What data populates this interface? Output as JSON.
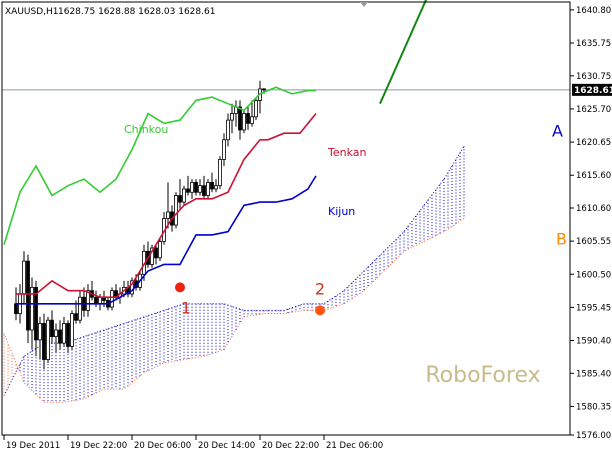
{
  "header": {
    "symbol": "XAUUSD,H1",
    "ohlc": "1628.75 1628.88 1628.03 1628.61"
  },
  "colors": {
    "chinkou": "#33cc33",
    "tenkan": "#cc1133",
    "kijun": "#0000cc",
    "cloud_a": "#0000cc",
    "cloud_b": "#ff6633",
    "forecast": "#118811",
    "last_price_line": "#8899aa",
    "watermark": "#c8bc8a"
  },
  "chart_data": {
    "type": "line",
    "ylim": [
      1576.0,
      1642.0
    ],
    "y_ticks": [
      "1640.80",
      "1635.75",
      "1630.75",
      "1625.70",
      "1620.65",
      "1615.60",
      "1610.60",
      "1605.55",
      "1600.50",
      "1595.45",
      "1590.40",
      "1585.40",
      "1580.35",
      "1576.00"
    ],
    "y_tick_values": [
      1640.8,
      1635.75,
      1630.75,
      1625.7,
      1620.65,
      1615.6,
      1610.6,
      1605.55,
      1600.5,
      1595.45,
      1590.4,
      1585.4,
      1580.35,
      1576.0
    ],
    "x_ticks": [
      "19 Dec 2011",
      "19 Dec 22:00",
      "20 Dec 06:00",
      "20 Dec 14:00",
      "20 Dec 22:00",
      "21 Dec 06:00"
    ],
    "x_tick_index": [
      0,
      16,
      32,
      48,
      64,
      80
    ],
    "last_price": 1628.61,
    "last_price_label": "1628.61",
    "candles": [
      [
        1596.0,
        1598.5,
        1593.5,
        1594.5
      ],
      [
        1594.5,
        1599.0,
        1593.0,
        1597.5
      ],
      [
        1597.5,
        1604.0,
        1596.0,
        1602.5
      ],
      [
        1602.5,
        1603.5,
        1590.0,
        1592.0
      ],
      [
        1592.0,
        1600.0,
        1589.0,
        1598.5
      ],
      [
        1598.5,
        1599.5,
        1588.0,
        1590.5
      ],
      [
        1590.5,
        1594.0,
        1587.5,
        1593.0
      ],
      [
        1593.0,
        1594.5,
        1586.0,
        1587.5
      ],
      [
        1587.5,
        1594.0,
        1587.0,
        1593.5
      ],
      [
        1593.5,
        1595.0,
        1590.0,
        1591.0
      ],
      [
        1591.0,
        1593.0,
        1588.5,
        1592.0
      ],
      [
        1592.0,
        1593.5,
        1589.0,
        1590.0
      ],
      [
        1590.0,
        1594.0,
        1589.5,
        1593.0
      ],
      [
        1593.0,
        1593.5,
        1588.5,
        1589.5
      ],
      [
        1589.5,
        1595.0,
        1589.0,
        1594.5
      ],
      [
        1594.5,
        1596.5,
        1593.0,
        1593.5
      ],
      [
        1593.5,
        1598.0,
        1593.0,
        1597.0
      ],
      [
        1597.0,
        1598.5,
        1594.0,
        1595.0
      ],
      [
        1595.0,
        1599.0,
        1594.0,
        1598.0
      ],
      [
        1598.0,
        1599.5,
        1596.5,
        1597.0
      ],
      [
        1597.0,
        1598.0,
        1595.5,
        1596.0
      ],
      [
        1596.0,
        1597.5,
        1595.0,
        1597.0
      ],
      [
        1597.0,
        1598.0,
        1595.5,
        1596.5
      ],
      [
        1596.5,
        1597.0,
        1595.0,
        1595.5
      ],
      [
        1595.5,
        1598.5,
        1595.0,
        1598.0
      ],
      [
        1598.0,
        1599.0,
        1596.5,
        1597.0
      ],
      [
        1597.0,
        1598.5,
        1596.0,
        1597.5
      ],
      [
        1597.5,
        1599.5,
        1597.0,
        1598.5
      ],
      [
        1598.5,
        1599.5,
        1597.0,
        1597.5
      ],
      [
        1597.5,
        1600.0,
        1597.0,
        1599.5
      ],
      [
        1599.5,
        1600.5,
        1598.0,
        1598.5
      ],
      [
        1598.5,
        1601.0,
        1598.0,
        1600.5
      ],
      [
        1600.5,
        1605.0,
        1599.5,
        1604.0
      ],
      [
        1604.0,
        1605.5,
        1601.5,
        1602.0
      ],
      [
        1602.0,
        1605.0,
        1601.5,
        1604.5
      ],
      [
        1604.5,
        1605.0,
        1602.0,
        1603.0
      ],
      [
        1603.0,
        1606.0,
        1602.5,
        1605.5
      ],
      [
        1605.5,
        1610.0,
        1605.0,
        1609.0
      ],
      [
        1609.0,
        1614.5,
        1607.5,
        1610.0
      ],
      [
        1610.0,
        1611.0,
        1607.0,
        1608.0
      ],
      [
        1608.0,
        1613.0,
        1607.5,
        1612.5
      ],
      [
        1612.5,
        1615.0,
        1610.5,
        1611.5
      ],
      [
        1611.5,
        1614.0,
        1611.0,
        1613.5
      ],
      [
        1613.5,
        1615.5,
        1612.5,
        1613.0
      ],
      [
        1613.0,
        1615.0,
        1612.0,
        1614.5
      ],
      [
        1614.5,
        1615.0,
        1612.5,
        1613.0
      ],
      [
        1613.0,
        1615.0,
        1612.5,
        1614.0
      ],
      [
        1614.0,
        1615.5,
        1612.0,
        1612.5
      ],
      [
        1612.5,
        1615.0,
        1612.0,
        1614.5
      ],
      [
        1614.5,
        1616.0,
        1613.0,
        1613.5
      ],
      [
        1613.5,
        1615.0,
        1613.0,
        1614.0
      ],
      [
        1614.0,
        1618.5,
        1613.5,
        1618.0
      ],
      [
        1618.0,
        1622.0,
        1617.0,
        1621.0
      ],
      [
        1621.0,
        1625.0,
        1620.0,
        1624.0
      ],
      [
        1624.0,
        1626.5,
        1622.0,
        1625.0
      ],
      [
        1625.0,
        1627.0,
        1623.0,
        1626.0
      ],
      [
        1626.0,
        1627.0,
        1621.0,
        1622.5
      ],
      [
        1622.5,
        1625.5,
        1622.0,
        1625.0
      ],
      [
        1625.0,
        1626.0,
        1622.5,
        1623.5
      ],
      [
        1623.5,
        1627.0,
        1623.0,
        1624.5
      ],
      [
        1624.5,
        1627.5,
        1624.0,
        1627.0
      ],
      [
        1627.0,
        1630.0,
        1625.0,
        1628.75
      ],
      [
        1628.75,
        1628.88,
        1628.03,
        1628.61
      ]
    ],
    "candle_x0": 3,
    "series": [
      {
        "name": "Tenkan",
        "color": "#cc1133",
        "x": [
          3,
          8,
          12,
          16,
          20,
          24,
          28,
          32,
          36,
          39,
          42,
          45,
          48,
          52,
          56,
          60,
          64,
          66,
          70,
          74,
          78
        ],
        "values": [
          1597.5,
          1597.5,
          1599.5,
          1598.0,
          1598.0,
          1597.0,
          1597.0,
          1599.0,
          1603.0,
          1606.0,
          1609.0,
          1611.0,
          1612.0,
          1612.0,
          1613.0,
          1618.0,
          1621.0,
          1621.0,
          1622.0,
          1622.0,
          1625.0
        ]
      },
      {
        "name": "Kijun",
        "color": "#0000cc",
        "x": [
          3,
          12,
          16,
          26,
          32,
          36,
          40,
          44,
          48,
          52,
          56,
          60,
          64,
          68,
          72,
          76,
          78
        ],
        "values": [
          1596.0,
          1596.0,
          1596.0,
          1596.0,
          1598.0,
          1601.0,
          1602.0,
          1602.0,
          1606.5,
          1606.5,
          1607.0,
          1611.0,
          1611.5,
          1611.5,
          1612.0,
          1613.5,
          1615.5
        ]
      },
      {
        "name": "Chinkou",
        "color": "#33cc33",
        "x": [
          0,
          4,
          8,
          12,
          16,
          20,
          24,
          28,
          32,
          36,
          40,
          44,
          48,
          52,
          56,
          60,
          64,
          68,
          72,
          76,
          78
        ],
        "values": [
          1605.0,
          1613.0,
          1617.0,
          1612.5,
          1614.0,
          1615.0,
          1613.0,
          1615.0,
          1619.5,
          1625.0,
          1623.5,
          1624.0,
          1627.0,
          1627.5,
          1626.5,
          1625.5,
          1628.0,
          1629.0,
          1628.0,
          1628.5,
          1628.5
        ]
      }
    ],
    "cloud": {
      "x": [
        0,
        5,
        10,
        15,
        20,
        25,
        30,
        35,
        40,
        45,
        50,
        55,
        60,
        65,
        70,
        75,
        80,
        85,
        90,
        95,
        100,
        105,
        110,
        115
      ],
      "span_a": [
        1582.0,
        1588.0,
        1590.0,
        1590.0,
        1591.0,
        1592.0,
        1593.0,
        1594.0,
        1595.0,
        1596.0,
        1596.0,
        1596.0,
        1595.0,
        1595.0,
        1595.0,
        1596.0,
        1596.0,
        1598.0,
        1601.0,
        1604.0,
        1607.0,
        1611.0,
        1615.0,
        1620.0
      ],
      "span_b": [
        1591.5,
        1584.0,
        1581.0,
        1581.0,
        1581.5,
        1583.0,
        1583.0,
        1585.5,
        1587.0,
        1587.5,
        1588.0,
        1589.0,
        1594.0,
        1594.5,
        1594.5,
        1595.0,
        1595.0,
        1596.0,
        1598.0,
        1601.0,
        1604.0,
        1605.5,
        1607.0,
        1609.0
      ]
    },
    "forecast": {
      "x": [
        94,
        106
      ],
      "values": [
        1626.5,
        1643.0
      ]
    },
    "markers": [
      {
        "label": "1",
        "x": 44,
        "value": 1598.5,
        "color": "#ee2211"
      },
      {
        "label": "2",
        "x": 79,
        "value": 1595.0,
        "color": "#ff5511"
      }
    ],
    "annotations": [
      {
        "text": "Chinkou",
        "x": 30,
        "value": 1622.0,
        "color": "#33cc33"
      },
      {
        "text": "Tenkan",
        "x": 81,
        "value": 1618.5,
        "color": "#cc1133"
      },
      {
        "text": "Kijun",
        "x": 81,
        "value": 1609.5,
        "color": "#0000cc"
      },
      {
        "text": "A",
        "x": 137,
        "value": 1621.5,
        "color": "#0000cc"
      },
      {
        "text": "B",
        "x": 138,
        "value": 1605.0,
        "color": "#ff8800"
      }
    ],
    "watermark": "RoboForex"
  }
}
